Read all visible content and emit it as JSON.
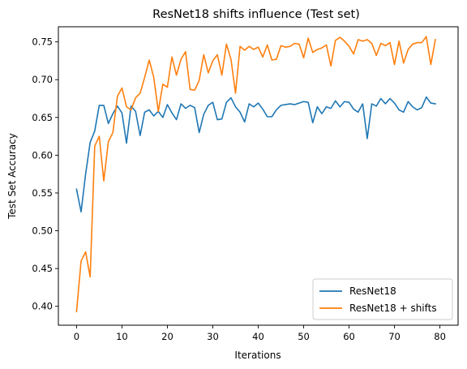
{
  "chart_data": {
    "type": "line",
    "title": "ResNet18 shifts influence (Test set)",
    "xlabel": "Iterations",
    "ylabel": "Test Set Accuracy",
    "xlim": [
      -4,
      84
    ],
    "ylim": [
      0.375,
      0.77
    ],
    "xticks": [
      0,
      10,
      20,
      30,
      40,
      50,
      60,
      70,
      80
    ],
    "yticks": [
      0.4,
      0.45,
      0.5,
      0.55,
      0.6,
      0.65,
      0.7,
      0.75
    ],
    "grid": false,
    "legend_position": "lower-right",
    "x": [
      0,
      1,
      2,
      3,
      4,
      5,
      6,
      7,
      8,
      9,
      10,
      11,
      12,
      13,
      14,
      15,
      16,
      17,
      18,
      19,
      20,
      21,
      22,
      23,
      24,
      25,
      26,
      27,
      28,
      29,
      30,
      31,
      32,
      33,
      34,
      35,
      36,
      37,
      38,
      39,
      40,
      41,
      42,
      43,
      44,
      45,
      46,
      47,
      48,
      49,
      50,
      51,
      52,
      53,
      54,
      55,
      56,
      57,
      58,
      59,
      60,
      61,
      62,
      63,
      64,
      65,
      66,
      67,
      68,
      69,
      70,
      71,
      72,
      73,
      74,
      75,
      76,
      77,
      78,
      79
    ],
    "series": [
      {
        "name": "ResNet18",
        "color": "#1f77b4",
        "values": [
          0.555,
          0.525,
          0.575,
          0.617,
          0.632,
          0.666,
          0.666,
          0.642,
          0.655,
          0.665,
          0.656,
          0.616,
          0.665,
          0.658,
          0.626,
          0.657,
          0.66,
          0.652,
          0.658,
          0.65,
          0.667,
          0.656,
          0.647,
          0.668,
          0.662,
          0.666,
          0.663,
          0.63,
          0.654,
          0.666,
          0.67,
          0.647,
          0.648,
          0.67,
          0.676,
          0.664,
          0.657,
          0.644,
          0.668,
          0.664,
          0.669,
          0.661,
          0.651,
          0.651,
          0.66,
          0.666,
          0.667,
          0.668,
          0.667,
          0.669,
          0.671,
          0.67,
          0.643,
          0.664,
          0.655,
          0.664,
          0.662,
          0.672,
          0.664,
          0.671,
          0.67,
          0.661,
          0.657,
          0.668,
          0.622,
          0.668,
          0.665,
          0.675,
          0.668,
          0.675,
          0.669,
          0.66,
          0.657,
          0.671,
          0.664,
          0.66,
          0.663,
          0.677,
          0.669,
          0.668
        ]
      },
      {
        "name": "ResNet18 + shifts",
        "color": "#ff7f0e",
        "values": [
          0.393,
          0.46,
          0.472,
          0.439,
          0.612,
          0.625,
          0.566,
          0.618,
          0.63,
          0.678,
          0.689,
          0.664,
          0.66,
          0.676,
          0.682,
          0.703,
          0.726,
          0.703,
          0.658,
          0.694,
          0.69,
          0.73,
          0.706,
          0.727,
          0.737,
          0.687,
          0.686,
          0.699,
          0.733,
          0.709,
          0.725,
          0.733,
          0.706,
          0.747,
          0.727,
          0.682,
          0.744,
          0.739,
          0.744,
          0.74,
          0.743,
          0.73,
          0.746,
          0.726,
          0.727,
          0.745,
          0.743,
          0.744,
          0.748,
          0.747,
          0.729,
          0.755,
          0.736,
          0.74,
          0.742,
          0.746,
          0.718,
          0.752,
          0.756,
          0.751,
          0.744,
          0.734,
          0.753,
          0.751,
          0.753,
          0.748,
          0.732,
          0.748,
          0.745,
          0.749,
          0.72,
          0.751,
          0.722,
          0.74,
          0.747,
          0.749,
          0.749,
          0.757,
          0.72,
          0.753
        ]
      }
    ]
  }
}
